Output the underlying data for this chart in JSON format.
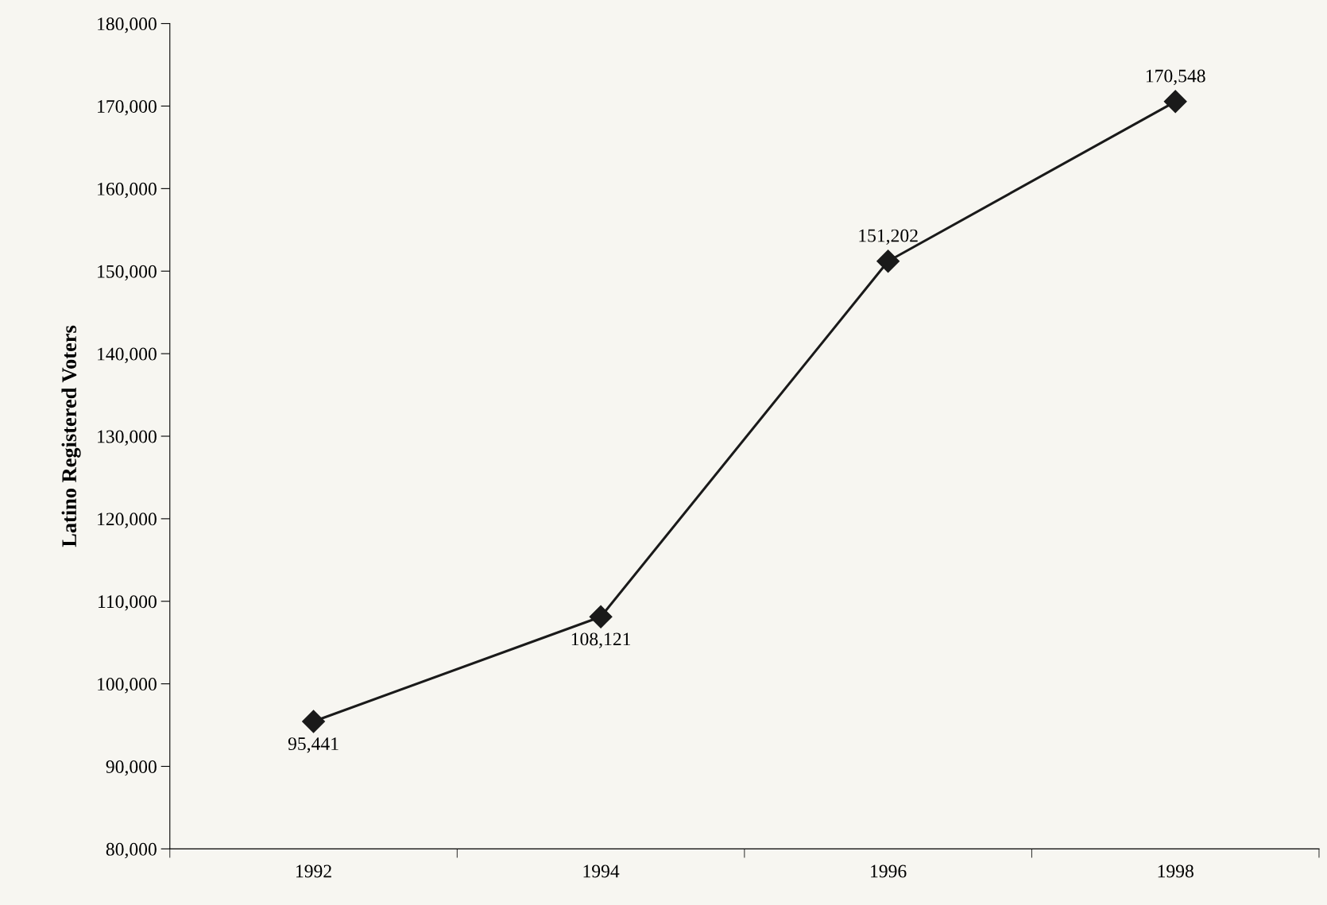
{
  "chart_data": {
    "type": "line",
    "ylabel": "Latino Registered Voters",
    "categories": [
      "1992",
      "1994",
      "1996",
      "1998"
    ],
    "series": [
      {
        "color": "#1a1a1a",
        "values": [
          95441,
          108121,
          151202,
          170548
        ],
        "value_labels": [
          "95,441",
          "108,121",
          "151,202",
          "170,548"
        ]
      }
    ],
    "marker": "diamond",
    "line_style": "solid",
    "grid": false,
    "legend": false,
    "ylim": [
      80000,
      180000
    ],
    "yticks": [
      {
        "value": 80000,
        "label": "80,000"
      },
      {
        "value": 90000,
        "label": "90,000"
      },
      {
        "value": 100000,
        "label": "100,000"
      },
      {
        "value": 110000,
        "label": "110,000"
      },
      {
        "value": 120000,
        "label": "120,000"
      },
      {
        "value": 130000,
        "label": "130,000"
      },
      {
        "value": 140000,
        "label": "140,000"
      },
      {
        "value": 150000,
        "label": "150,000"
      },
      {
        "value": 160000,
        "label": "160,000"
      },
      {
        "value": 170000,
        "label": "170,000"
      },
      {
        "value": 180000,
        "label": "180,000"
      }
    ]
  }
}
